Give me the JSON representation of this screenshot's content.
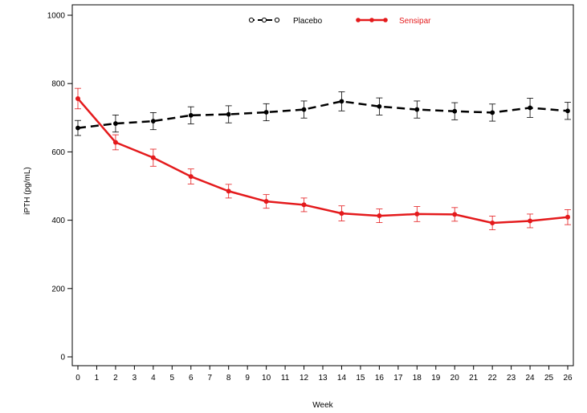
{
  "chart_data": {
    "type": "line",
    "title": "",
    "xlabel": "Week",
    "ylabel": "iPTH  (pg/mL)",
    "xlim": [
      0,
      26
    ],
    "ylim": [
      0,
      1000
    ],
    "xticks": [
      0,
      1,
      2,
      3,
      4,
      5,
      6,
      7,
      8,
      9,
      10,
      11,
      12,
      13,
      14,
      15,
      16,
      17,
      18,
      19,
      20,
      21,
      22,
      23,
      24,
      25,
      26
    ],
    "yticks": [
      0,
      200,
      400,
      600,
      800,
      1000
    ],
    "grid": false,
    "legend_position": "top-center",
    "series": [
      {
        "name": "Placebo",
        "color": "#000000",
        "line_style": "dashed",
        "marker": "open-circle",
        "x": [
          0,
          2,
          4,
          6,
          8,
          10,
          12,
          14,
          16,
          18,
          20,
          22,
          24,
          26
        ],
        "y": [
          670,
          683,
          690,
          707,
          710,
          716,
          724,
          748,
          733,
          724,
          719,
          715,
          729,
          720
        ],
        "err": [
          22,
          25,
          25,
          25,
          25,
          25,
          25,
          28,
          25,
          25,
          25,
          25,
          28,
          25
        ]
      },
      {
        "name": "Sensipar",
        "color": "#e41a1c",
        "line_style": "solid",
        "marker": "filled-circle",
        "x": [
          0,
          2,
          4,
          6,
          8,
          10,
          12,
          14,
          16,
          18,
          20,
          22,
          24,
          26
        ],
        "y": [
          756,
          628,
          583,
          528,
          485,
          455,
          445,
          420,
          413,
          418,
          417,
          392,
          398,
          409
        ],
        "err": [
          30,
          22,
          25,
          22,
          20,
          20,
          20,
          22,
          20,
          22,
          20,
          20,
          20,
          22
        ]
      }
    ]
  }
}
